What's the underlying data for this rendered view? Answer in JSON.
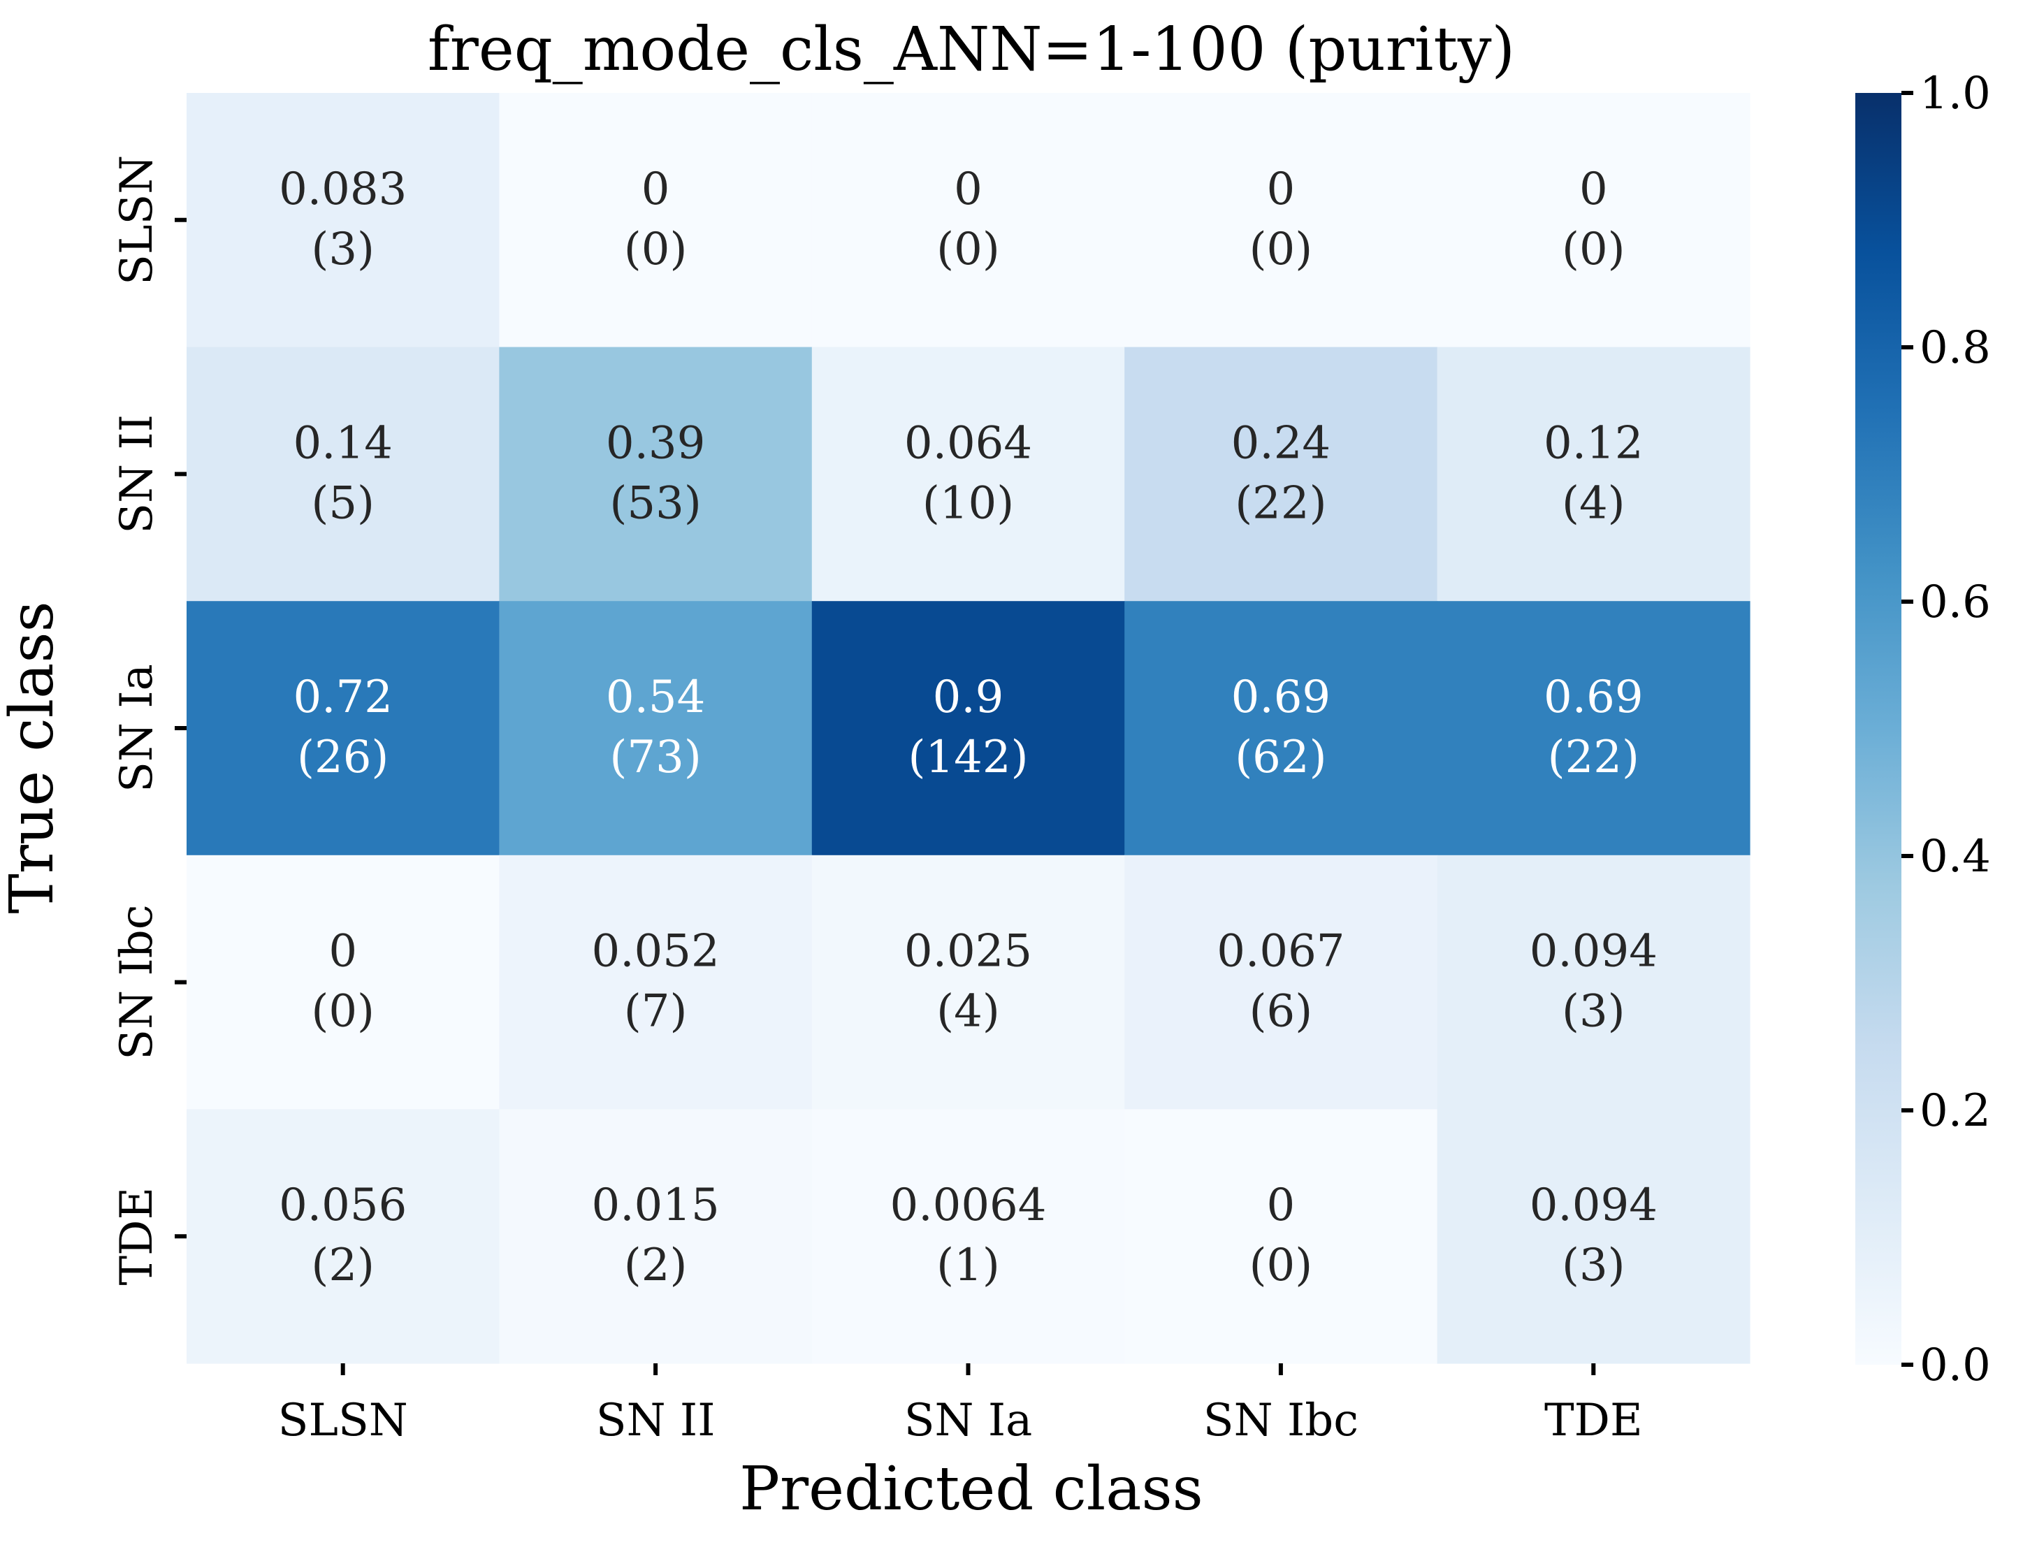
{
  "chart_data": {
    "type": "heatmap",
    "title": "freq_mode_cls_ANN=1-100 (purity)",
    "xlabel": "Predicted class",
    "ylabel": "True class",
    "x_categories": [
      "SLSN",
      "SN II",
      "SN Ia",
      "SN Ibc",
      "TDE"
    ],
    "y_categories": [
      "SLSN",
      "SN II",
      "SN Ia",
      "SN Ibc",
      "TDE"
    ],
    "values": [
      [
        0.083,
        0,
        0,
        0,
        0
      ],
      [
        0.14,
        0.39,
        0.064,
        0.24,
        0.12
      ],
      [
        0.72,
        0.54,
        0.9,
        0.69,
        0.69
      ],
      [
        0,
        0.052,
        0.025,
        0.067,
        0.094
      ],
      [
        0.056,
        0.015,
        0.0064,
        0,
        0.094
      ]
    ],
    "value_labels": [
      [
        "0.083",
        "0",
        "0",
        "0",
        "0"
      ],
      [
        "0.14",
        "0.39",
        "0.064",
        "0.24",
        "0.12"
      ],
      [
        "0.72",
        "0.54",
        "0.9",
        "0.69",
        "0.69"
      ],
      [
        "0",
        "0.052",
        "0.025",
        "0.067",
        "0.094"
      ],
      [
        "0.056",
        "0.015",
        "0.0064",
        "0",
        "0.094"
      ]
    ],
    "counts": [
      [
        3,
        0,
        0,
        0,
        0
      ],
      [
        5,
        53,
        10,
        22,
        4
      ],
      [
        26,
        73,
        142,
        62,
        22
      ],
      [
        0,
        7,
        4,
        6,
        3
      ],
      [
        2,
        2,
        1,
        0,
        3
      ]
    ],
    "colorbar": {
      "range": [
        0.0,
        1.0
      ],
      "ticks": [
        "0.0",
        "0.2",
        "0.4",
        "0.6",
        "0.8",
        "1.0"
      ],
      "colormap": "Blues",
      "colors": [
        "#f7fbff",
        "#deebf7",
        "#c6dbef",
        "#9ecae1",
        "#6baed6",
        "#4292c6",
        "#2171b5",
        "#08519c",
        "#08306b"
      ]
    },
    "grid": false
  }
}
